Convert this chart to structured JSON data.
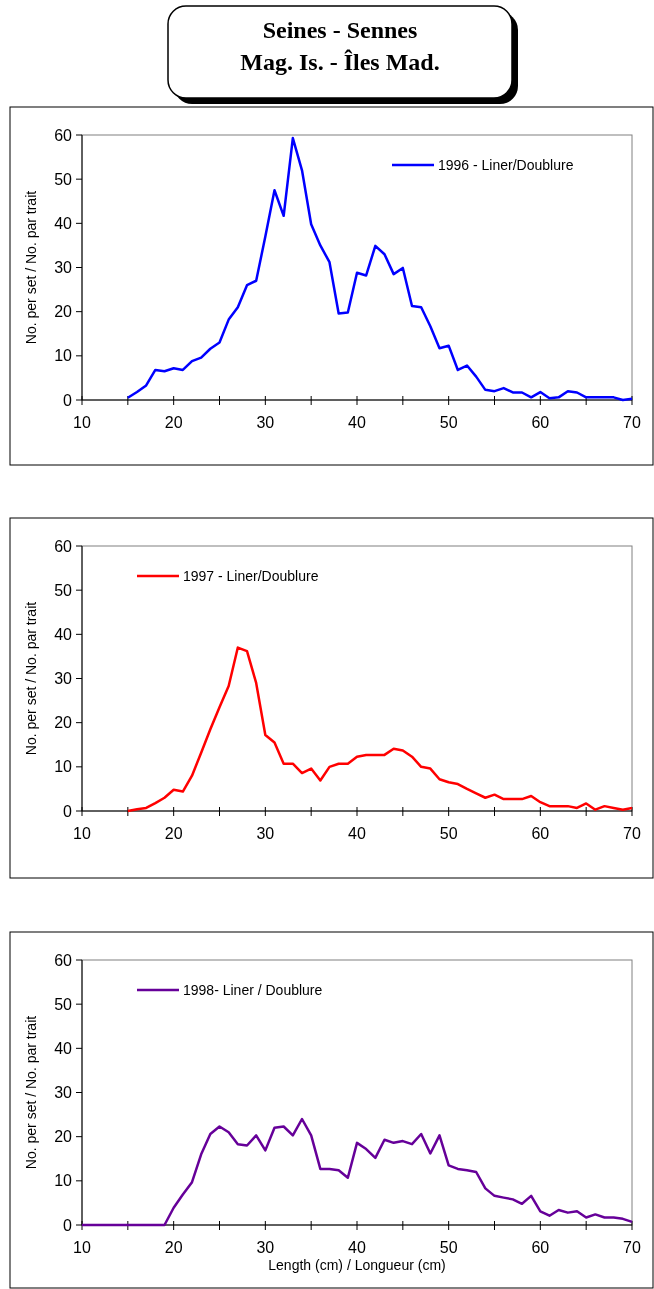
{
  "chart_data": [
    {
      "type": "line",
      "title": "Seines - Sennes\nMag. Is. - Îles Mad.",
      "ylabel": "No. per set / No. par trait",
      "legend": "top right",
      "xlim": [
        10,
        70
      ],
      "ylim": [
        0,
        60
      ],
      "yticks": [
        0,
        10,
        20,
        30,
        40,
        50,
        60
      ],
      "xticks": [
        10,
        {
          "value": 15,
          "label": null
        },
        20,
        {
          "value": 25,
          "label": null
        },
        30,
        {
          "value": 35,
          "label": null
        },
        40,
        {
          "value": 45,
          "label": null
        },
        50,
        {
          "value": 55,
          "label": null
        },
        60,
        {
          "value": 65,
          "label": null
        },
        70
      ],
      "series": [
        {
          "name": "1996 - Liner/Doublure",
          "color": "#0000ff",
          "x": [
            15,
            16,
            17,
            18,
            19,
            20,
            21,
            22,
            23,
            24,
            25,
            26,
            27,
            28,
            29,
            30,
            31,
            32,
            33,
            34,
            35,
            36,
            37,
            38,
            39,
            40,
            41,
            42,
            43,
            44,
            45,
            46,
            47,
            48,
            49,
            50,
            51,
            52,
            53,
            54,
            55,
            56,
            57,
            58,
            59,
            60,
            61,
            62,
            63,
            64,
            65,
            66,
            67,
            68,
            69,
            70
          ],
          "values": [
            0.5,
            1.8,
            3.3,
            6.8,
            6.5,
            7.2,
            6.8,
            8.8,
            9.6,
            11.6,
            13,
            18.2,
            21,
            26,
            27,
            37,
            47.5,
            41.7,
            59.3,
            52,
            39.8,
            35,
            31.2,
            19.6,
            19.8,
            28.8,
            28.2,
            34.9,
            33,
            28.5,
            29.9,
            21.3,
            21,
            16.7,
            11.7,
            12.3,
            6.8,
            7.8,
            5.3,
            2.3,
            2,
            2.7,
            1.7,
            1.7,
            0.6,
            1.8,
            0.4,
            0.6,
            2,
            1.7,
            0.6,
            0.6,
            0.6,
            0.6,
            0,
            0.3
          ]
        }
      ]
    },
    {
      "type": "line",
      "ylabel": "No. per set / No. par trait",
      "legend": "top left",
      "xlim": [
        10,
        70
      ],
      "ylim": [
        0,
        60
      ],
      "yticks": [
        0,
        10,
        20,
        30,
        40,
        50,
        60
      ],
      "xticks": [
        10,
        {
          "value": 15,
          "label": null
        },
        20,
        {
          "value": 25,
          "label": null
        },
        30,
        {
          "value": 35,
          "label": null
        },
        40,
        {
          "value": 45,
          "label": null
        },
        50,
        {
          "value": 55,
          "label": null
        },
        60,
        {
          "value": 65,
          "label": null
        },
        70
      ],
      "series": [
        {
          "name": "1997 - Liner/Doublure",
          "color": "#ff0000",
          "x": [
            15,
            16,
            17,
            18,
            19,
            20,
            21,
            22,
            23,
            24,
            25,
            26,
            27,
            28,
            29,
            30,
            31,
            32,
            33,
            34,
            35,
            36,
            37,
            38,
            39,
            40,
            41,
            42,
            43,
            44,
            45,
            46,
            47,
            48,
            49,
            50,
            51,
            52,
            53,
            54,
            55,
            56,
            57,
            58,
            59,
            60,
            61,
            62,
            63,
            64,
            65,
            66,
            67,
            68,
            69,
            70
          ],
          "values": [
            0,
            0.4,
            0.7,
            1.8,
            3,
            4.8,
            4.4,
            8,
            13.2,
            18.5,
            23.5,
            28.3,
            37,
            36.2,
            29,
            17.2,
            15.5,
            10.7,
            10.7,
            8.6,
            9.6,
            6.9,
            10,
            10.7,
            10.7,
            12.3,
            12.7,
            12.7,
            12.7,
            14.1,
            13.7,
            12.3,
            10,
            9.6,
            7.2,
            6.5,
            6.1,
            5,
            4,
            3,
            3.7,
            2.7,
            2.7,
            2.7,
            3.4,
            2,
            1.1,
            1.1,
            1.1,
            0.7,
            1.7,
            0.3,
            1.1,
            0.7,
            0.3,
            0.7
          ]
        }
      ]
    },
    {
      "type": "line",
      "ylabel": "No. per set / No. par trait",
      "xlabel": "Length (cm) / Longueur (cm)",
      "legend": "top left",
      "xlim": [
        10,
        70
      ],
      "ylim": [
        0,
        60
      ],
      "yticks": [
        0,
        10,
        20,
        30,
        40,
        50,
        60
      ],
      "xticks": [
        10,
        {
          "value": 15,
          "label": null
        },
        20,
        {
          "value": 25,
          "label": null
        },
        30,
        {
          "value": 35,
          "label": null
        },
        40,
        {
          "value": 45,
          "label": null
        },
        50,
        {
          "value": 55,
          "label": null
        },
        60,
        {
          "value": 65,
          "label": null
        },
        70
      ],
      "series": [
        {
          "name": "1998- Liner / Doublure",
          "color": "#660099",
          "x": [
            10,
            11,
            12,
            13,
            14,
            15,
            16,
            17,
            18,
            19,
            20,
            21,
            22,
            23,
            24,
            25,
            26,
            27,
            28,
            29,
            30,
            31,
            32,
            33,
            34,
            35,
            36,
            37,
            38,
            39,
            40,
            41,
            42,
            43,
            44,
            45,
            46,
            47,
            48,
            49,
            50,
            51,
            52,
            53,
            54,
            55,
            56,
            57,
            58,
            59,
            60,
            61,
            62,
            63,
            64,
            65,
            66,
            67,
            68,
            69,
            70
          ],
          "values": [
            0,
            0,
            0,
            0,
            0,
            0,
            0,
            0,
            0,
            0,
            3.9,
            6.9,
            9.7,
            16,
            20.6,
            22.3,
            21,
            18.3,
            18,
            20.3,
            16.9,
            22,
            22.3,
            20.3,
            24,
            20.3,
            12.7,
            12.7,
            12.4,
            10.7,
            18.6,
            17.2,
            15.2,
            19.3,
            18.6,
            19,
            18.3,
            20.6,
            16.2,
            20.3,
            13.5,
            12.7,
            12.4,
            12,
            8.3,
            6.6,
            6.2,
            5.8,
            4.8,
            6.6,
            3.1,
            2.1,
            3.4,
            2.8,
            3.1,
            1.7,
            2.4,
            1.7,
            1.7,
            1.4,
            0.7
          ]
        }
      ]
    }
  ]
}
